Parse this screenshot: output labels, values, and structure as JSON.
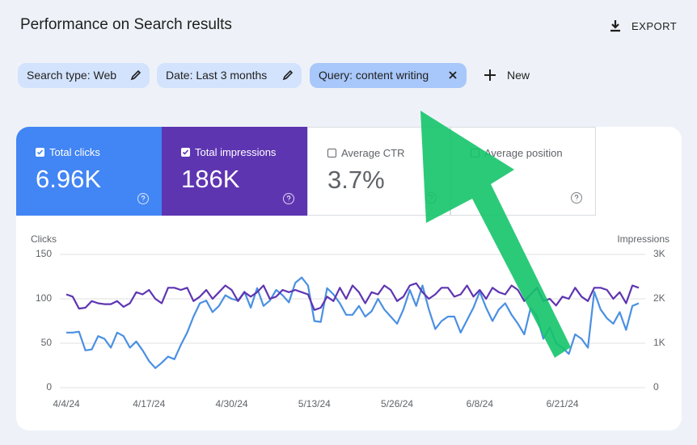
{
  "header": {
    "title": "Performance on Search results",
    "export": "EXPORT"
  },
  "filters": [
    {
      "label": "Search type: Web",
      "active": false
    },
    {
      "label": "Date: Last 3 months",
      "active": false
    },
    {
      "label": "Query: content writing",
      "active": true
    }
  ],
  "new_button": "New",
  "metrics": [
    {
      "label": "Total clicks",
      "value": "6.96K",
      "checked": true,
      "color": "#4285f4"
    },
    {
      "label": "Total impressions",
      "value": "186K",
      "checked": true,
      "color": "#5e35b1"
    },
    {
      "label": "Average CTR",
      "value": "3.7%",
      "checked": false,
      "color": "#ffffff"
    },
    {
      "label": "Average position",
      "checked": false,
      "color": "#ffffff"
    }
  ],
  "chart_data": {
    "type": "line",
    "categories": [
      "4/4/24",
      null,
      null,
      null,
      null,
      null,
      null,
      null,
      null,
      null,
      null,
      null,
      null,
      "4/17/24",
      null,
      null,
      null,
      null,
      null,
      null,
      null,
      null,
      null,
      null,
      null,
      null,
      "4/30/24",
      null,
      null,
      null,
      null,
      null,
      null,
      null,
      null,
      null,
      null,
      null,
      null,
      "5/13/24",
      null,
      null,
      null,
      null,
      null,
      null,
      null,
      null,
      null,
      null,
      null,
      null,
      "5/26/24",
      null,
      null,
      null,
      null,
      null,
      null,
      null,
      null,
      null,
      null,
      null,
      null,
      "6/8/24",
      null,
      null,
      null,
      null,
      null,
      null,
      null,
      null,
      null,
      null,
      null,
      null,
      "6/21/24",
      null,
      null,
      null,
      null,
      null,
      null,
      null,
      null,
      null,
      null,
      null,
      null
    ],
    "series": [
      {
        "name": "Clicks",
        "color": "#4a90e2",
        "values": [
          62,
          62,
          63,
          42,
          43,
          58,
          55,
          45,
          62,
          58,
          45,
          52,
          42,
          30,
          22,
          28,
          35,
          32,
          48,
          62,
          80,
          95,
          98,
          85,
          92,
          104,
          100,
          98,
          108,
          90,
          112,
          92,
          98,
          110,
          104,
          96,
          118,
          124,
          115,
          75,
          74,
          112,
          105,
          95,
          82,
          82,
          92,
          80,
          86,
          100,
          88,
          80,
          72,
          88,
          110,
          92,
          115,
          88,
          66,
          75,
          80,
          80,
          62,
          76,
          90,
          108,
          90,
          75,
          88,
          95,
          82,
          72,
          60,
          90,
          80,
          55,
          68,
          50,
          45,
          38,
          60,
          55,
          45,
          108,
          88,
          78,
          72,
          85,
          65,
          92,
          95
        ]
      },
      {
        "name": "Impressions",
        "color": "#5e35b1",
        "axis": "y2",
        "values": [
          2100,
          2050,
          1780,
          1800,
          1950,
          1900,
          1880,
          1880,
          1950,
          1820,
          1900,
          2150,
          2100,
          2200,
          2000,
          1900,
          2250,
          2250,
          2200,
          2250,
          1950,
          2050,
          2200,
          2000,
          2150,
          2300,
          2200,
          1950,
          2150,
          2050,
          2150,
          2300,
          2000,
          2050,
          2200,
          2150,
          2200,
          2150,
          2100,
          1750,
          1800,
          2050,
          1950,
          2250,
          2000,
          2300,
          2150,
          1900,
          2150,
          2100,
          2300,
          2200,
          1950,
          2050,
          2300,
          2350,
          2150,
          2000,
          2100,
          2250,
          2250,
          2050,
          2100,
          2300,
          2050,
          2200,
          2000,
          2250,
          2150,
          2100,
          2300,
          2200,
          1950,
          2100,
          2250,
          1950,
          2000,
          1850,
          2050,
          2000,
          2250,
          2050,
          1950,
          2250,
          2250,
          2200,
          2000,
          2150,
          1900,
          2300,
          2250
        ]
      }
    ],
    "ylim": [
      0,
      150
    ],
    "yticks": [
      0,
      50,
      100,
      150
    ],
    "y2lim": [
      0,
      3000
    ],
    "y2ticks": [
      0,
      {
        "value": 1000,
        "label": "1K"
      },
      {
        "value": 2000,
        "label": "2K"
      },
      {
        "value": 3000,
        "label": "3K"
      }
    ],
    "grid": true
  }
}
